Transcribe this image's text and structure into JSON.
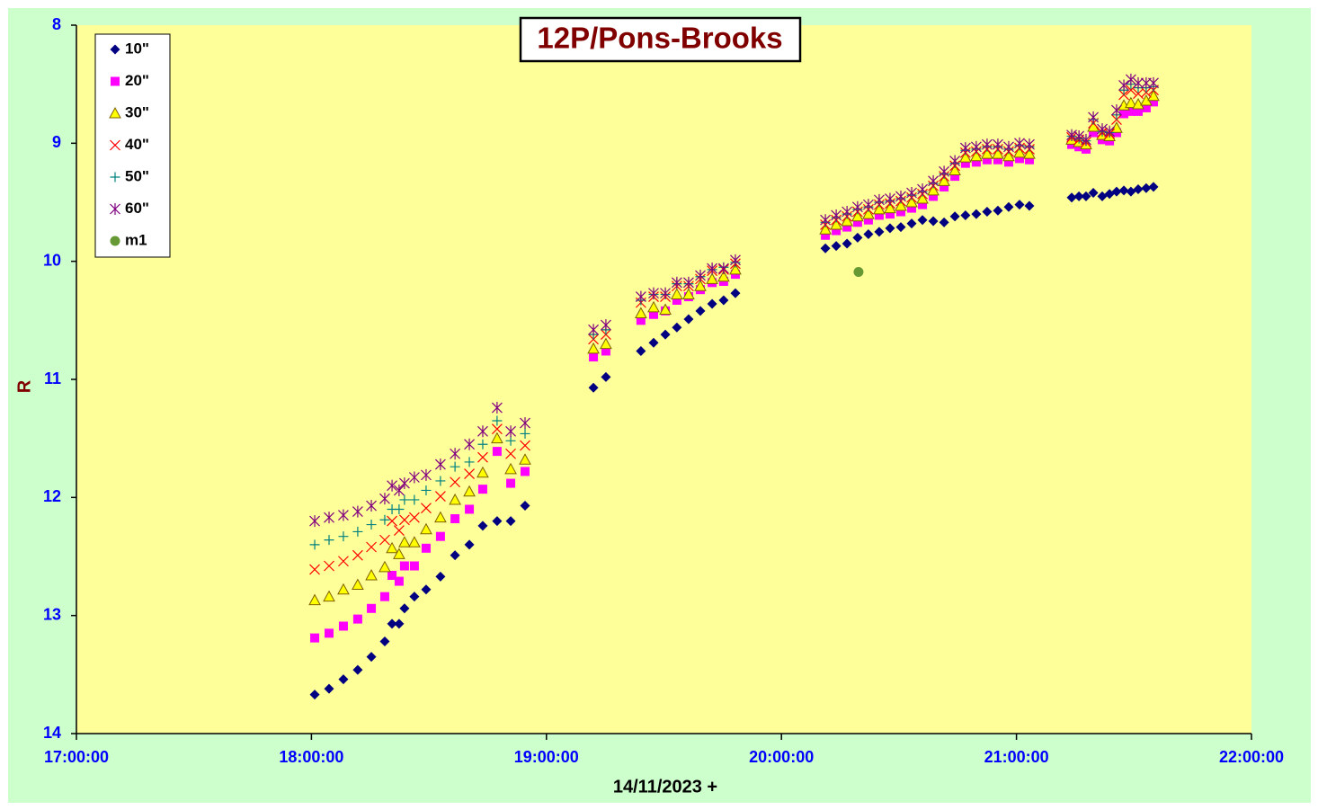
{
  "chart_data": {
    "type": "scatter",
    "title": "12P/Pons-Brooks",
    "x_label": "14/11/2023 +",
    "y_label": "R",
    "xlim": [
      17,
      22
    ],
    "xticks": [
      {
        "value": 17,
        "label": "17:00:00"
      },
      {
        "value": 18,
        "label": "18:00:00"
      },
      {
        "value": 19,
        "label": "19:00:00"
      },
      {
        "value": 20,
        "label": "20:00:00"
      },
      {
        "value": 21,
        "label": "21:00:00"
      },
      {
        "value": 22,
        "label": "22:00:00"
      }
    ],
    "ylim": [
      8,
      14
    ],
    "yticks": [
      8,
      9,
      10,
      11,
      12,
      13,
      14
    ],
    "y_reversed": true,
    "legend": "top-left",
    "x": [
      18.014,
      18.075,
      18.136,
      18.197,
      18.255,
      18.312,
      18.343,
      18.373,
      18.396,
      18.438,
      18.488,
      18.549,
      18.611,
      18.672,
      18.729,
      18.79,
      18.848,
      18.909,
      19.2,
      19.253,
      19.402,
      19.456,
      19.506,
      19.555,
      19.605,
      19.655,
      19.705,
      19.754,
      19.804,
      20.187,
      20.233,
      20.279,
      20.324,
      20.37,
      20.416,
      20.462,
      20.508,
      20.554,
      20.6,
      20.646,
      20.692,
      20.738,
      20.783,
      20.829,
      20.875,
      20.921,
      20.967,
      21.013,
      21.055,
      21.235,
      21.266,
      21.296,
      21.327,
      21.365,
      21.396,
      21.426,
      21.457,
      21.487,
      21.518,
      21.552,
      21.583
    ],
    "series": [
      {
        "name": "10\"",
        "marker": "diamond",
        "color": "#000080",
        "values": [
          13.67,
          13.62,
          13.54,
          13.46,
          13.35,
          13.22,
          13.07,
          13.07,
          12.94,
          12.84,
          12.78,
          12.67,
          12.49,
          12.4,
          12.24,
          12.2,
          12.2,
          12.07,
          11.07,
          10.98,
          10.76,
          10.69,
          10.62,
          10.56,
          10.49,
          10.42,
          10.36,
          10.33,
          10.27,
          9.89,
          9.87,
          9.85,
          9.8,
          9.77,
          9.75,
          9.72,
          9.71,
          9.68,
          9.65,
          9.66,
          9.67,
          9.62,
          9.61,
          9.6,
          9.58,
          9.57,
          9.54,
          9.52,
          9.53,
          9.46,
          9.45,
          9.45,
          9.42,
          9.45,
          9.43,
          9.41,
          9.4,
          9.41,
          9.39,
          9.38,
          9.37
        ]
      },
      {
        "name": "20\"",
        "marker": "square",
        "color": "#ff00ff",
        "values": [
          13.19,
          13.15,
          13.09,
          13.03,
          12.94,
          12.84,
          12.66,
          12.71,
          12.58,
          12.58,
          12.43,
          12.33,
          12.18,
          12.1,
          11.93,
          11.61,
          11.88,
          11.78,
          10.81,
          10.76,
          10.5,
          10.45,
          10.42,
          10.33,
          10.3,
          10.24,
          10.18,
          10.17,
          10.11,
          9.78,
          9.74,
          9.71,
          9.67,
          9.65,
          9.61,
          9.6,
          9.58,
          9.55,
          9.52,
          9.45,
          9.37,
          9.28,
          9.17,
          9.16,
          9.14,
          9.14,
          9.16,
          9.13,
          9.14,
          9.01,
          9.03,
          9.05,
          8.91,
          8.97,
          8.98,
          8.91,
          8.75,
          8.73,
          8.73,
          8.7,
          8.65
        ]
      },
      {
        "name": "30\"",
        "marker": "triangle",
        "color": "#ffff00",
        "values": [
          12.87,
          12.84,
          12.78,
          12.74,
          12.66,
          12.59,
          12.43,
          12.48,
          12.38,
          12.38,
          12.27,
          12.17,
          12.02,
          11.95,
          11.79,
          11.5,
          11.76,
          11.68,
          10.74,
          10.7,
          10.44,
          10.39,
          10.41,
          10.28,
          10.28,
          10.21,
          10.15,
          10.13,
          10.07,
          9.73,
          9.69,
          9.66,
          9.62,
          9.6,
          9.56,
          9.55,
          9.53,
          9.5,
          9.47,
          9.4,
          9.32,
          9.23,
          9.12,
          9.11,
          9.09,
          9.09,
          9.11,
          9.08,
          9.09,
          8.97,
          8.99,
          9.01,
          8.86,
          8.93,
          8.94,
          8.87,
          8.68,
          8.66,
          8.67,
          8.64,
          8.6
        ]
      },
      {
        "name": "40\"",
        "marker": "cross",
        "color": "#ff0000",
        "values": [
          12.61,
          12.58,
          12.54,
          12.49,
          12.42,
          12.36,
          12.2,
          12.28,
          12.19,
          12.17,
          12.09,
          11.99,
          11.87,
          11.8,
          11.66,
          11.42,
          11.63,
          11.56,
          10.66,
          10.62,
          10.35,
          10.3,
          10.3,
          10.21,
          10.21,
          10.15,
          10.08,
          10.07,
          10.02,
          9.69,
          9.65,
          9.62,
          9.58,
          9.56,
          9.52,
          9.51,
          9.49,
          9.46,
          9.43,
          9.36,
          9.28,
          9.19,
          9.08,
          9.07,
          9.05,
          9.05,
          9.07,
          9.04,
          9.05,
          8.95,
          8.97,
          8.99,
          8.83,
          8.91,
          8.92,
          8.8,
          8.59,
          8.55,
          8.58,
          8.57,
          8.55
        ]
      },
      {
        "name": "50\"",
        "marker": "plus",
        "color": "#008080",
        "values": [
          12.4,
          12.36,
          12.33,
          12.29,
          12.23,
          12.19,
          12.1,
          12.1,
          12.02,
          12.02,
          11.94,
          11.86,
          11.74,
          11.7,
          11.55,
          11.35,
          11.52,
          11.46,
          10.62,
          10.58,
          10.33,
          10.28,
          10.28,
          10.19,
          10.19,
          10.13,
          10.07,
          10.05,
          10.01,
          9.67,
          9.63,
          9.6,
          9.56,
          9.54,
          9.5,
          9.49,
          9.47,
          9.44,
          9.41,
          9.34,
          9.26,
          9.17,
          9.06,
          9.05,
          9.03,
          9.03,
          9.05,
          9.02,
          9.03,
          8.94,
          8.96,
          8.98,
          8.8,
          8.9,
          8.91,
          8.76,
          8.55,
          8.5,
          8.53,
          8.53,
          8.52
        ]
      },
      {
        "name": "60\"",
        "marker": "star",
        "color": "#800080",
        "values": [
          12.2,
          12.17,
          12.15,
          12.12,
          12.07,
          12.01,
          11.9,
          11.94,
          11.88,
          11.83,
          11.81,
          11.72,
          11.63,
          11.55,
          11.44,
          11.24,
          11.44,
          11.37,
          10.58,
          10.54,
          10.3,
          10.27,
          10.27,
          10.18,
          10.18,
          10.12,
          10.06,
          10.06,
          9.99,
          9.65,
          9.61,
          9.58,
          9.54,
          9.52,
          9.48,
          9.47,
          9.45,
          9.42,
          9.39,
          9.32,
          9.24,
          9.15,
          9.04,
          9.03,
          9.01,
          9.01,
          9.03,
          9.0,
          9.01,
          8.93,
          8.94,
          8.97,
          8.78,
          8.88,
          8.9,
          8.72,
          8.51,
          8.46,
          8.49,
          8.49,
          8.49
        ]
      },
      {
        "name": "m1",
        "marker": "circle",
        "color": "#669933",
        "x": [
          20.328
        ],
        "values": [
          10.09
        ]
      }
    ]
  }
}
